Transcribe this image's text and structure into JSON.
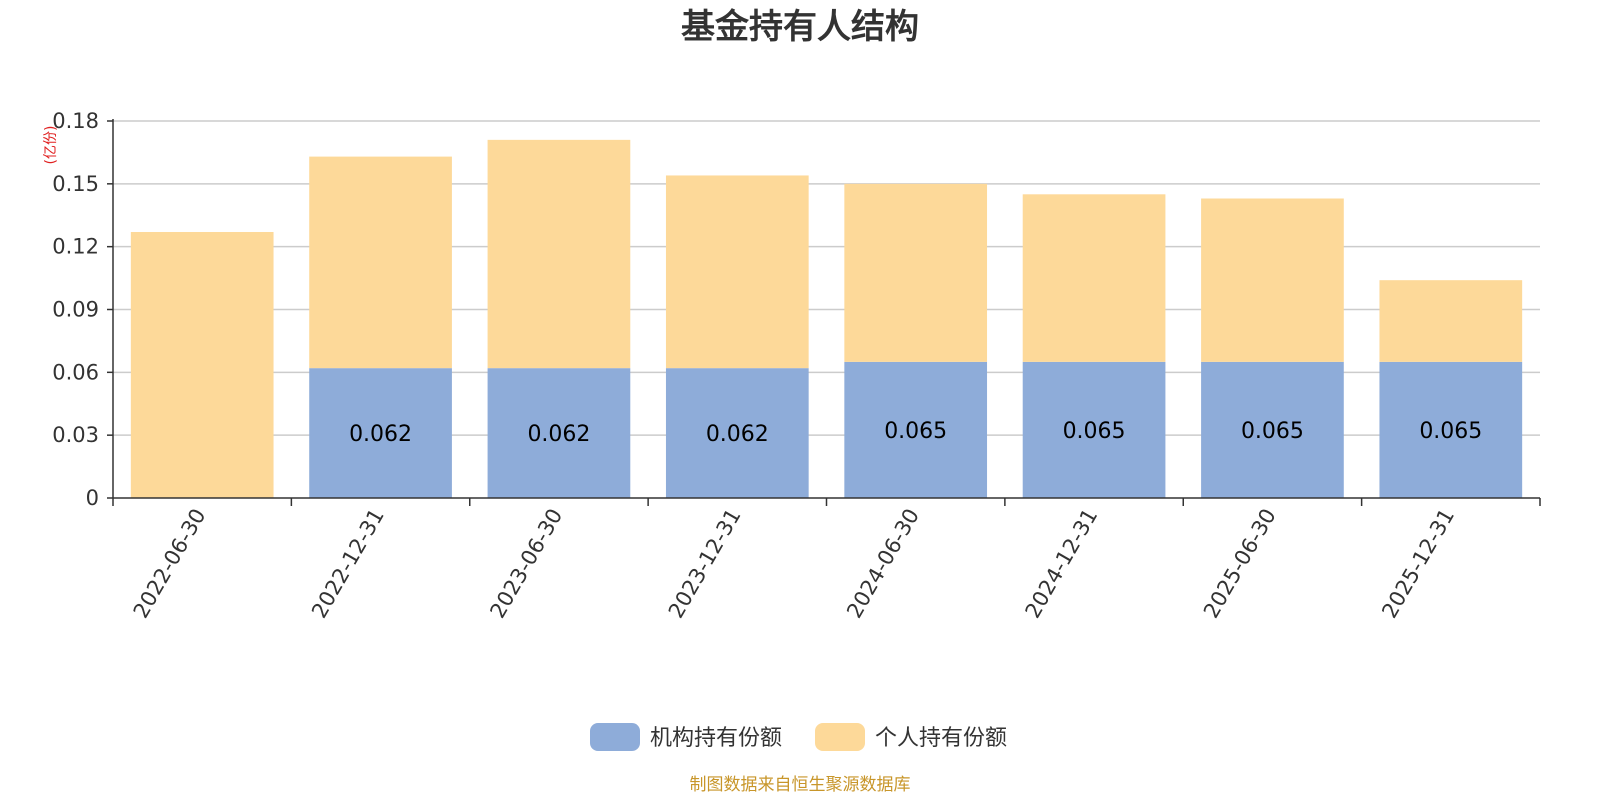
{
  "chart_data": {
    "type": "bar",
    "stacked": true,
    "title": "基金持有人结构",
    "unit_label": "(亿份)",
    "categories": [
      "2022-06-30",
      "2022-12-31",
      "2023-06-30",
      "2023-12-31",
      "2024-06-30",
      "2024-12-31",
      "2025-06-30",
      "2025-12-31"
    ],
    "series": [
      {
        "name": "机构持有份额",
        "color": "#8eacd9",
        "values": [
          0,
          0.062,
          0.062,
          0.062,
          0.065,
          0.065,
          0.065,
          0.065
        ],
        "labels": [
          "",
          "0.062",
          "0.062",
          "0.062",
          "0.065",
          "0.065",
          "0.065",
          "0.065"
        ]
      },
      {
        "name": "个人持有份额",
        "color": "#fdd999",
        "values": [
          0.127,
          0.101,
          0.109,
          0.092,
          0.085,
          0.08,
          0.078,
          0.039
        ]
      }
    ],
    "yticks": [
      "0",
      "0.03",
      "0.06",
      "0.09",
      "0.12",
      "0.15",
      "0.18"
    ],
    "ylim": [
      0,
      0.18
    ],
    "grid": true,
    "legend_position": "bottom-center",
    "source_note": "制图数据来自恒生聚源数据库"
  }
}
